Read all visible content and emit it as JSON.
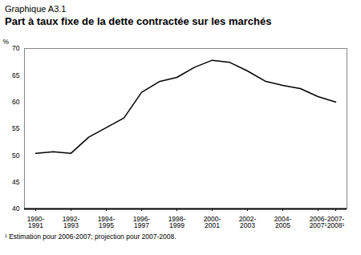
{
  "chart_data": {
    "type": "line",
    "subtitle": "Graphique A3.1",
    "title": "Part à taux fixe de la dette contractée sur les marchés",
    "ylabel": "%",
    "categories": [
      "1990-1991",
      null,
      "1992-1993",
      null,
      "1994-1995",
      null,
      "1996-1997",
      null,
      "1998-1999",
      null,
      "2000-2001",
      null,
      "2002-2003",
      null,
      "2004-2005",
      null,
      "2006-2007¹",
      "2007-2008¹"
    ],
    "values": [
      50.4,
      50.7,
      50.4,
      53.4,
      55.2,
      57.0,
      61.8,
      63.8,
      64.6,
      66.5,
      67.8,
      67.4,
      65.8,
      63.9,
      63.1,
      62.5,
      61.0,
      60.0
    ],
    "color": "#000000",
    "ylim": [
      40,
      70
    ],
    "yticks": [
      40,
      45,
      50,
      55,
      60,
      65,
      70
    ],
    "grid": false,
    "annotations": [
      "¹ Estimation pour 2006-2007; projection pour 2007-2008."
    ]
  }
}
